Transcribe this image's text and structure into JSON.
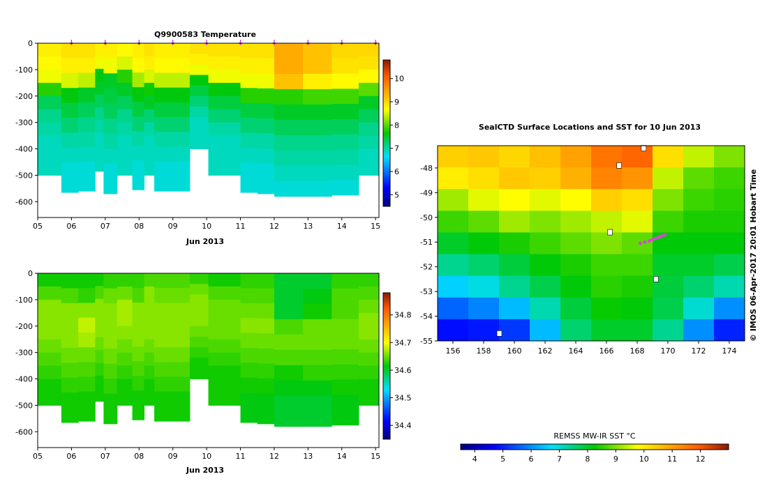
{
  "panels": {
    "temperature": {
      "title": "Q9900583  Temperature",
      "xlabel": "Jun 2013",
      "x_ticks": [
        "05",
        "06",
        "07",
        "08",
        "09",
        "10",
        "11",
        "12",
        "13",
        "14",
        "15"
      ],
      "y_ticks": [
        "0",
        "-100",
        "-200",
        "-300",
        "-400",
        "-500",
        "-600"
      ],
      "colorbar_ticks": [
        "10",
        "9",
        "8",
        "7",
        "6",
        "5"
      ]
    },
    "salinity": {
      "title": "",
      "xlabel": "Jun 2013",
      "x_ticks": [
        "05",
        "06",
        "07",
        "08",
        "09",
        "10",
        "11",
        "12",
        "13",
        "14",
        "15"
      ],
      "y_ticks": [
        "0",
        "-100",
        "-200",
        "-300",
        "-400",
        "-500",
        "-600"
      ],
      "colorbar_ticks": [
        "34.8",
        "34.7",
        "34.6",
        "34.5",
        "34.4"
      ]
    },
    "map": {
      "title": "SealCTD Surface Locations and SST for 10 Jun 2013",
      "lat_ticks": [
        "-48",
        "-49",
        "-50",
        "-51",
        "-52",
        "-53",
        "-54",
        "-55"
      ],
      "lon_ticks": [
        "156",
        "158",
        "160",
        "162",
        "164",
        "166",
        "168",
        "170",
        "172",
        "174"
      ],
      "side_label": "© IMOS 06-Apr-2017 20:01 Hobart Time",
      "colorbar_title": "REMSS MW-IR SST °C",
      "colorbar_ticks": [
        "4",
        "5",
        "6",
        "7",
        "8",
        "9",
        "10",
        "11",
        "12"
      ]
    }
  },
  "chart_data": [
    {
      "type": "heatmap",
      "title": "Q9900583  Temperature",
      "xlabel": "Jun 2013",
      "ylabel": "",
      "xlim": [
        5,
        15.1
      ],
      "ylim": [
        -660,
        0
      ],
      "colorbar_range": [
        4.5,
        10.8
      ],
      "profile_days": [
        6.0,
        7.0,
        8.0,
        9.0,
        10.0,
        11.0,
        12.0,
        13.0,
        14.0,
        15.0
      ],
      "profiles": [
        {
          "x0": 5.0,
          "x1": 5.7,
          "bottom": -500,
          "cells": [
            8.8,
            8.7,
            8.6,
            7.8,
            7.3,
            7.1,
            7.0,
            6.9,
            6.9,
            6.9
          ]
        },
        {
          "x0": 5.7,
          "x1": 6.2,
          "bottom": -565,
          "cells": [
            8.9,
            8.8,
            8.5,
            7.6,
            7.4,
            7.2,
            7.0,
            6.9,
            6.8,
            6.8
          ]
        },
        {
          "x0": 6.2,
          "x1": 6.7,
          "bottom": -560,
          "cells": [
            8.9,
            8.8,
            8.4,
            7.5,
            7.3,
            7.1,
            7.0,
            6.9,
            6.8,
            6.8
          ]
        },
        {
          "x0": 6.7,
          "x1": 6.95,
          "bottom": -485,
          "cells": [
            8.8,
            8.6,
            7.6,
            7.5,
            7.3,
            7.1,
            7.0,
            6.9,
            6.9,
            6.9
          ]
        },
        {
          "x0": 6.95,
          "x1": 7.35,
          "bottom": -570,
          "cells": [
            8.8,
            8.6,
            7.5,
            7.4,
            7.3,
            7.1,
            7.0,
            6.9,
            6.8,
            6.8
          ]
        },
        {
          "x0": 7.35,
          "x1": 7.8,
          "bottom": -500,
          "cells": [
            8.7,
            8.5,
            7.8,
            7.5,
            7.3,
            7.1,
            7.0,
            6.9,
            6.9,
            6.9
          ]
        },
        {
          "x0": 7.8,
          "x1": 8.15,
          "bottom": -555,
          "cells": [
            8.8,
            8.7,
            8.3,
            7.6,
            7.4,
            7.2,
            7.0,
            6.9,
            6.8,
            6.8
          ]
        },
        {
          "x0": 8.15,
          "x1": 8.45,
          "bottom": -500,
          "cells": [
            8.9,
            8.8,
            8.5,
            7.7,
            7.5,
            7.2,
            7.0,
            6.9,
            6.9,
            6.9
          ]
        },
        {
          "x0": 8.45,
          "x1": 9.5,
          "bottom": -560,
          "cells": [
            8.8,
            8.7,
            8.4,
            7.6,
            7.4,
            7.2,
            7.0,
            6.9,
            6.8,
            6.8
          ]
        },
        {
          "x0": 9.5,
          "x1": 10.05,
          "bottom": -400,
          "cells": [
            8.9,
            8.8,
            8.6,
            7.6,
            7.4,
            7.2,
            7.0,
            6.9,
            6.9,
            6.9
          ]
        },
        {
          "x0": 10.05,
          "x1": 11.0,
          "bottom": -500,
          "cells": [
            8.9,
            8.8,
            8.6,
            7.6,
            7.4,
            7.2,
            7.0,
            6.9,
            6.9,
            6.9
          ]
        },
        {
          "x0": 11.0,
          "x1": 11.5,
          "bottom": -565,
          "cells": [
            8.9,
            8.8,
            8.6,
            7.8,
            7.4,
            7.2,
            7.0,
            6.9,
            6.8,
            6.8
          ]
        },
        {
          "x0": 11.5,
          "x1": 12.0,
          "bottom": -570,
          "cells": [
            8.9,
            8.8,
            8.6,
            7.8,
            7.4,
            7.2,
            7.0,
            6.9,
            6.8,
            6.8
          ]
        },
        {
          "x0": 12.0,
          "x1": 12.85,
          "bottom": -580,
          "cells": [
            9.4,
            9.4,
            9.2,
            7.8,
            7.5,
            7.3,
            7.1,
            7.0,
            6.9,
            6.8
          ]
        },
        {
          "x0": 12.85,
          "x1": 13.7,
          "bottom": -580,
          "cells": [
            9.2,
            9.2,
            8.8,
            7.9,
            7.5,
            7.3,
            7.1,
            7.0,
            6.9,
            6.8
          ]
        },
        {
          "x0": 13.7,
          "x1": 14.5,
          "bottom": -575,
          "cells": [
            9.0,
            8.9,
            8.7,
            7.9,
            7.5,
            7.3,
            7.1,
            7.0,
            6.9,
            6.8
          ]
        },
        {
          "x0": 14.5,
          "x1": 15.1,
          "bottom": -500,
          "cells": [
            9.0,
            8.9,
            8.7,
            8.0,
            7.5,
            7.3,
            7.1,
            7.0,
            6.9,
            6.9
          ]
        }
      ]
    },
    {
      "type": "heatmap",
      "title": "",
      "xlabel": "Jun 2013",
      "ylabel": "",
      "xlim": [
        5,
        15.1
      ],
      "ylim": [
        -660,
        0
      ],
      "colorbar_range": [
        34.35,
        34.88
      ],
      "profiles": [
        {
          "x0": 5.0,
          "x1": 5.7,
          "bottom": -500,
          "cells": [
            34.62,
            34.64,
            34.66,
            34.66,
            34.66,
            34.65,
            34.64,
            34.63,
            34.62,
            34.62
          ]
        },
        {
          "x0": 5.7,
          "x1": 6.2,
          "bottom": -565,
          "cells": [
            34.62,
            34.64,
            34.66,
            34.66,
            34.66,
            34.65,
            34.64,
            34.63,
            34.62,
            34.62
          ]
        },
        {
          "x0": 6.2,
          "x1": 6.7,
          "bottom": -560,
          "cells": [
            34.62,
            34.63,
            34.66,
            34.68,
            34.67,
            34.65,
            34.64,
            34.63,
            34.62,
            34.62
          ]
        },
        {
          "x0": 6.7,
          "x1": 6.95,
          "bottom": -485,
          "cells": [
            34.62,
            34.64,
            34.66,
            34.66,
            34.66,
            34.65,
            34.64,
            34.63,
            34.62,
            34.62
          ]
        },
        {
          "x0": 6.95,
          "x1": 7.35,
          "bottom": -570,
          "cells": [
            34.63,
            34.65,
            34.66,
            34.66,
            34.66,
            34.65,
            34.64,
            34.63,
            34.62,
            34.62
          ]
        },
        {
          "x0": 7.35,
          "x1": 7.8,
          "bottom": -500,
          "cells": [
            34.63,
            34.65,
            34.67,
            34.67,
            34.66,
            34.65,
            34.64,
            34.63,
            34.62,
            34.62
          ]
        },
        {
          "x0": 7.8,
          "x1": 8.15,
          "bottom": -555,
          "cells": [
            34.63,
            34.64,
            34.66,
            34.66,
            34.66,
            34.65,
            34.64,
            34.63,
            34.62,
            34.62
          ]
        },
        {
          "x0": 8.15,
          "x1": 8.45,
          "bottom": -500,
          "cells": [
            34.64,
            34.66,
            34.66,
            34.66,
            34.66,
            34.65,
            34.64,
            34.63,
            34.62,
            34.62
          ]
        },
        {
          "x0": 8.45,
          "x1": 9.5,
          "bottom": -560,
          "cells": [
            34.64,
            34.65,
            34.66,
            34.66,
            34.66,
            34.65,
            34.64,
            34.63,
            34.62,
            34.62
          ]
        },
        {
          "x0": 9.5,
          "x1": 10.05,
          "bottom": -400,
          "cells": [
            34.63,
            34.65,
            34.66,
            34.66,
            34.66,
            34.65,
            34.64,
            34.63,
            34.62,
            34.62
          ]
        },
        {
          "x0": 10.05,
          "x1": 11.0,
          "bottom": -500,
          "cells": [
            34.62,
            34.64,
            34.65,
            34.65,
            34.65,
            34.64,
            34.63,
            34.62,
            34.62,
            34.62
          ]
        },
        {
          "x0": 11.0,
          "x1": 11.5,
          "bottom": -565,
          "cells": [
            34.63,
            34.64,
            34.65,
            34.66,
            34.65,
            34.64,
            34.63,
            34.62,
            34.61,
            34.61
          ]
        },
        {
          "x0": 11.5,
          "x1": 12.0,
          "bottom": -570,
          "cells": [
            34.63,
            34.64,
            34.65,
            34.66,
            34.65,
            34.64,
            34.63,
            34.62,
            34.61,
            34.61
          ]
        },
        {
          "x0": 12.0,
          "x1": 12.85,
          "bottom": -580,
          "cells": [
            34.6,
            34.6,
            34.6,
            34.64,
            34.65,
            34.64,
            34.62,
            34.61,
            34.6,
            34.6
          ]
        },
        {
          "x0": 12.85,
          "x1": 13.7,
          "bottom": -580,
          "cells": [
            34.6,
            34.61,
            34.62,
            34.65,
            34.65,
            34.64,
            34.63,
            34.61,
            34.6,
            34.6
          ]
        },
        {
          "x0": 13.7,
          "x1": 14.5,
          "bottom": -575,
          "cells": [
            34.63,
            34.64,
            34.64,
            34.65,
            34.65,
            34.64,
            34.63,
            34.62,
            34.61,
            34.61
          ]
        },
        {
          "x0": 14.5,
          "x1": 15.1,
          "bottom": -500,
          "cells": [
            34.63,
            34.64,
            34.65,
            34.66,
            34.66,
            34.65,
            34.64,
            34.63,
            34.62,
            34.62
          ]
        }
      ]
    },
    {
      "type": "heatmap",
      "title": "SealCTD Surface Locations and SST for 10 Jun 2013",
      "xlabel": "",
      "ylabel": "",
      "xlim": [
        155,
        175
      ],
      "ylim": [
        -55,
        -47.1
      ],
      "colorbar_title": "REMSS MW-IR SST °C",
      "colorbar_range": [
        3.5,
        13
      ],
      "sst_grid": {
        "lon_edges": [
          155,
          157,
          159,
          161,
          163,
          165,
          167,
          169,
          171,
          173,
          175
        ],
        "lat_rows_top_to_bottom": [
          [
            10.4,
            10.5,
            10.3,
            10.6,
            11.0,
            11.6,
            11.8,
            10.2,
            9.4,
            9.0
          ],
          [
            10.0,
            10.2,
            10.5,
            10.4,
            10.8,
            11.4,
            11.2,
            9.4,
            8.8,
            8.6
          ],
          [
            9.2,
            9.6,
            9.8,
            9.6,
            9.8,
            10.4,
            10.2,
            9.0,
            8.6,
            8.5
          ],
          [
            8.6,
            8.8,
            9.2,
            9.0,
            9.2,
            9.4,
            9.6,
            8.6,
            8.4,
            8.4
          ],
          [
            8.0,
            8.2,
            8.4,
            8.6,
            8.8,
            9.0,
            8.8,
            8.2,
            8.2,
            8.2
          ],
          [
            7.4,
            7.6,
            7.9,
            8.2,
            8.4,
            8.6,
            8.6,
            8.0,
            8.0,
            7.8
          ],
          [
            6.6,
            6.9,
            7.4,
            7.8,
            8.2,
            8.5,
            8.4,
            7.9,
            7.6,
            7.2
          ],
          [
            5.6,
            5.9,
            6.4,
            7.2,
            7.9,
            8.3,
            8.2,
            7.8,
            7.0,
            6.0
          ],
          [
            4.8,
            4.9,
            5.2,
            6.4,
            7.6,
            8.0,
            8.0,
            7.4,
            6.0,
            5.0
          ]
        ]
      },
      "seal_positions": [
        {
          "lon": 168.5,
          "lat": -51.0
        },
        {
          "lon": 168.8,
          "lat": -50.95
        },
        {
          "lon": 169.0,
          "lat": -50.9
        },
        {
          "lon": 169.2,
          "lat": -50.85
        },
        {
          "lon": 169.4,
          "lat": -50.8
        },
        {
          "lon": 169.6,
          "lat": -50.75
        },
        {
          "lon": 169.8,
          "lat": -50.7
        },
        {
          "lon": 168.2,
          "lat": -51.05
        }
      ]
    }
  ]
}
